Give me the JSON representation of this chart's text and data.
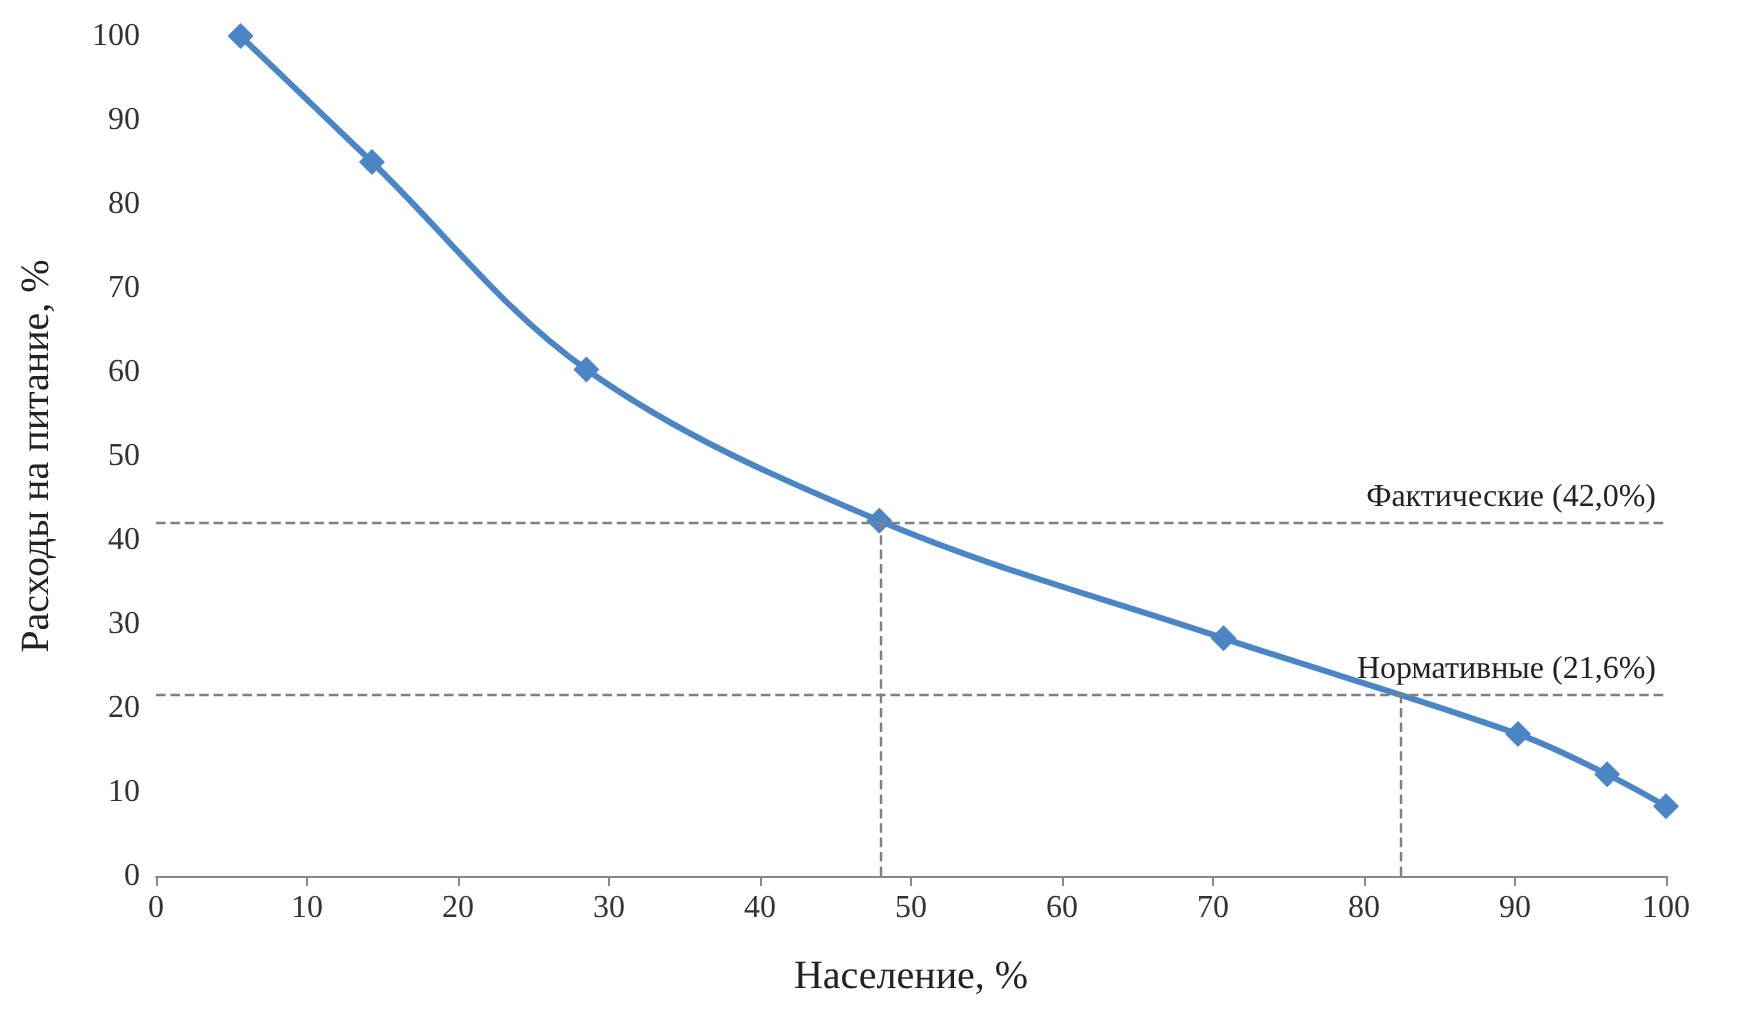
{
  "chart_data": {
    "type": "line",
    "xlabel": "Население, %",
    "ylabel": "Расходы на питание, %",
    "x": [
      5.6,
      14.3,
      28.5,
      47.9,
      70.7,
      90.2,
      96.1,
      100
    ],
    "series": [
      {
        "color": "#4a86c5",
        "values": [
          100,
          85,
          60.3,
          42.3,
          28.3,
          16.9,
          12.1,
          8.3
        ]
      }
    ],
    "xlim": [
      0,
      100
    ],
    "xticks": [
      0,
      10,
      20,
      30,
      40,
      50,
      60,
      70,
      80,
      90,
      100
    ],
    "ylim": [
      0,
      100
    ],
    "yticks": [
      0,
      10,
      20,
      30,
      40,
      50,
      60,
      70,
      80,
      90,
      100
    ],
    "marker": "diamond",
    "grid": false,
    "ref_lines": [
      {
        "axis": "y",
        "value": 42,
        "label": "Фактические (42,0%)",
        "color": "#808080",
        "line_style": "dashed"
      },
      {
        "axis": "y",
        "value": 21.6,
        "label": "Нормативные (21,6%)",
        "color": "#808080",
        "line_style": "dashed"
      },
      {
        "axis": "x",
        "value": 48,
        "color": "#808080",
        "line_style": "dashed"
      },
      {
        "axis": "x",
        "value": 82.4,
        "color": "#808080",
        "line_style": "dashed"
      }
    ]
  }
}
